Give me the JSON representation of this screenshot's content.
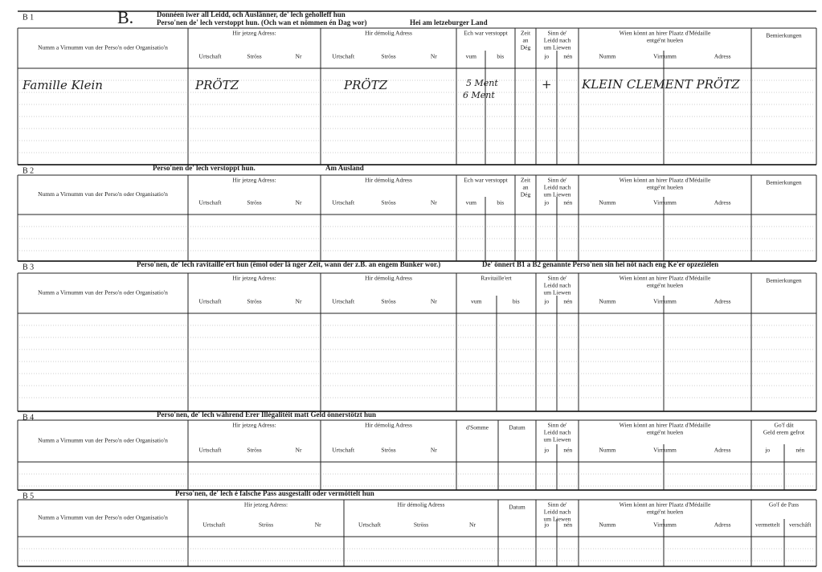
{
  "sections": [
    {
      "label": "B 1",
      "letter": "B.",
      "title": [
        "Donnéen iwer all Leidd, och Auslänner, de' lech geholleff hun",
        "Perso'nen de' lech verstoppt hun. (Och wan et nömmen én Dag wor)"
      ],
      "note": "Hei am letzeburger Land",
      "columns": [
        {
          "label": [
            "Numm a Virnumm vun der Perso'n oder Organisatio'n"
          ],
          "sub": []
        },
        {
          "label": [
            "Hir jetzeg Adress:"
          ],
          "sub": [
            "Urtschaft",
            "Ströss",
            "Nr"
          ]
        },
        {
          "label": [
            "Hir démolig Adress"
          ],
          "sub": [
            "Urtschaft",
            "Ströss",
            "Nr"
          ]
        },
        {
          "label": [
            "Ech war verstoppt"
          ],
          "sub": [
            "vum",
            "bis"
          ]
        },
        {
          "label": [
            "Zeit",
            "an",
            "Dég"
          ],
          "sub": []
        },
        {
          "label": [
            "Sinn de'",
            "Leidd nach",
            "um Liewen"
          ],
          "sub": [
            "jo",
            "nén"
          ]
        },
        {
          "label": [
            "Wien könnt an hirer Plaatz d'Médaille",
            "entgé'nt huelen"
          ],
          "sub": [
            "Numm",
            "Virnumm",
            "Adress"
          ]
        },
        {
          "label": [
            "Bemierkungen"
          ],
          "sub": []
        }
      ],
      "entries": [
        {
          "name": "Famille Klein",
          "current_locality": "PRÖTZ",
          "former_locality": "PRÖTZ",
          "from": "5 Ment",
          "to": "6 Ment",
          "deceased": "+",
          "medal_recipient": "KLEIN CLEMENT PRÖTZ"
        }
      ]
    },
    {
      "label": "B 2",
      "title": [
        "Perso'nen de' lech verstoppt hun."
      ],
      "note": "Am Ausland",
      "columns": [
        {
          "label": [
            "Numm a Virnumm vun der Perso'n oder Organisatio'n"
          ],
          "sub": []
        },
        {
          "label": [
            "Hir jetzeg Adress:"
          ],
          "sub": [
            "Urtschaft",
            "Ströss",
            "Nr"
          ]
        },
        {
          "label": [
            "Hir démolig Adress"
          ],
          "sub": [
            "Urtschaft",
            "Ströss",
            "Nr"
          ]
        },
        {
          "label": [
            "Ech war verstoppt"
          ],
          "sub": [
            "vum",
            "bis"
          ]
        },
        {
          "label": [
            "Zeit",
            "an",
            "Dég"
          ],
          "sub": []
        },
        {
          "label": [
            "Sinn de'",
            "Leidd nach",
            "um Liewen"
          ],
          "sub": [
            "jo",
            "nén"
          ]
        },
        {
          "label": [
            "Wien könnt an hirer Plaatz d'Médaille",
            "entgé'nt huelen"
          ],
          "sub": [
            "Numm",
            "Virnumm",
            "Adress"
          ]
        },
        {
          "label": [
            "Bemierkungen"
          ],
          "sub": []
        }
      ]
    },
    {
      "label": "B 3",
      "title": [
        "Perso'nen, de' lech ravitaille'ert hun (ëmol oder lä nger Zeit, wann der z.B. an engem Bunker wor.)"
      ],
      "note": "De' önnert B1 a B2 genannte Perso'nen sin hei nöt nach eng Ke'er opzeziélen",
      "columns": [
        {
          "label": [
            "Numm a Virnumm vun der Perso'n oder Organisatio'n"
          ],
          "sub": []
        },
        {
          "label": [
            "Hir jetzeg Adress:"
          ],
          "sub": [
            "Urtschaft",
            "Ströss",
            "Nr"
          ]
        },
        {
          "label": [
            "Hir démolig Adress"
          ],
          "sub": [
            "Urtschaft",
            "Ströss",
            "Nr"
          ]
        },
        {
          "label": [
            "Ravitaille'ert"
          ],
          "sub": [
            "vum",
            "bis"
          ]
        },
        {
          "label": [
            "Sinn de'",
            "Leidd nach",
            "um Liewen"
          ],
          "sub": [
            "jo",
            "nén"
          ]
        },
        {
          "label": [
            "Wien könnt an hirer Plaatz d'Médaille",
            "entgé'nt huelen"
          ],
          "sub": [
            "Numm",
            "Virnumm",
            "Adress"
          ]
        },
        {
          "label": [
            "Bemierkungen"
          ],
          "sub": []
        }
      ]
    },
    {
      "label": "B 4",
      "title": [
        "Perso'nen, de' lech während Erer Illégalitéit matt Geld önnerstötzt hun"
      ],
      "columns": [
        {
          "label": [
            "Numm a Virnumm vun der Perso'n oder Organisatio'n"
          ],
          "sub": []
        },
        {
          "label": [
            "Hir jetzeg Adress:"
          ],
          "sub": [
            "Urtschaft",
            "Ströss",
            "Nr"
          ]
        },
        {
          "label": [
            "Hir démolig Adress"
          ],
          "sub": [
            "Urtschaft",
            "Ströss",
            "Nr"
          ]
        },
        {
          "label": [
            "d'Somme"
          ],
          "sub": []
        },
        {
          "label": [
            "Datum"
          ],
          "sub": []
        },
        {
          "label": [
            "Sinn de'",
            "Leidd nach",
            "um Liewen"
          ],
          "sub": [
            "jo",
            "nén"
          ]
        },
        {
          "label": [
            "Wien könnt an hirer Plaatz d'Médaille",
            "entgé'nt huelen"
          ],
          "sub": [
            "Numm",
            "Virnumm",
            "Adress"
          ]
        },
        {
          "label": [
            "Go'f dât",
            "Geld erem gefrot"
          ],
          "sub": [
            "jo",
            "nén"
          ]
        }
      ]
    },
    {
      "label": "B 5",
      "title": [
        "Perso'nen, de' lech é falsche Pass ausgestallt oder vermöttelt hun"
      ],
      "columns": [
        {
          "label": [
            "Numm a Virnumm vun der Perso'n oder Organisatio'n"
          ],
          "sub": []
        },
        {
          "label": [
            "Hir jetzeg Adress:"
          ],
          "sub": [
            "Urtschaft",
            "Ströss",
            "Nr"
          ]
        },
        {
          "label": [
            "Hir démolig Adress"
          ],
          "sub": [
            "Urtschaft",
            "Ströss",
            "Nr"
          ]
        },
        {
          "label": [
            "Datum"
          ],
          "sub": []
        },
        {
          "label": [
            "Sinn de'",
            "Leidd nach",
            "um Liewen"
          ],
          "sub": [
            "jo",
            "nén"
          ]
        },
        {
          "label": [
            "Wien könnt an hirer Plaatz d'Médaille",
            "entgé'nt huelen"
          ],
          "sub": [
            "Numm",
            "Virnumm",
            "Adress"
          ]
        },
        {
          "label": [
            "Go'f de Pass"
          ],
          "sub": [
            "vermettelt",
            "verschâft"
          ]
        }
      ]
    }
  ]
}
